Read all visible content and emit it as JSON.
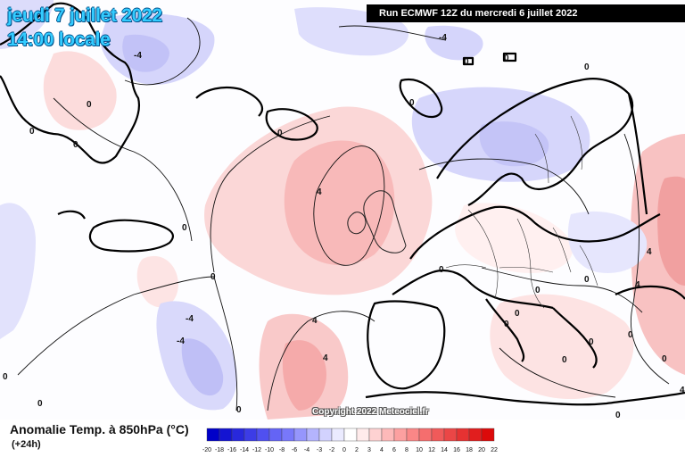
{
  "header": {
    "date_line": "jeudi 7 juillet 2022",
    "time_line": "14:00 locale",
    "run_banner": "Run ECMWF 12Z du mercredi 6 juillet 2022"
  },
  "copyright": "Copyright 2022 Meteociel.fr",
  "footer": {
    "parameter": "Anomalie Temp. à 850hPa (°C)",
    "lead_time": "(+24h)"
  },
  "legend": {
    "values": [
      "-20",
      "-18",
      "-16",
      "-14",
      "-12",
      "-10",
      "-8",
      "-6",
      "-4",
      "-3",
      "-2",
      "0",
      "2",
      "3",
      "4",
      "6",
      "8",
      "10",
      "12",
      "14",
      "16",
      "18",
      "20",
      "22"
    ],
    "colors": [
      "#0000c8",
      "#1414d2",
      "#2828dc",
      "#3c3ce6",
      "#5050f0",
      "#6464f5",
      "#7878fa",
      "#9696fc",
      "#b4b4fd",
      "#d2d2fe",
      "#ebebff",
      "#ffffff",
      "#ffebeb",
      "#fed2d2",
      "#fdb9b9",
      "#fca0a0",
      "#fa8787",
      "#f56e6e",
      "#f05a5a",
      "#eb4646",
      "#e63232",
      "#e11e1e",
      "#dc0a0a"
    ],
    "unit": "°C"
  },
  "map": {
    "contour_labels": [
      "4",
      "-4",
      "-4",
      "-4",
      "0",
      "0",
      "0",
      "0",
      "0",
      "0",
      "0",
      "0",
      "4",
      "0",
      "0",
      "0",
      "4",
      "0",
      "0",
      "-4",
      "-4",
      "4",
      "4",
      "0",
      "0",
      "0",
      "0",
      "0",
      "0",
      "0",
      "4",
      "0",
      "0",
      "0"
    ]
  }
}
